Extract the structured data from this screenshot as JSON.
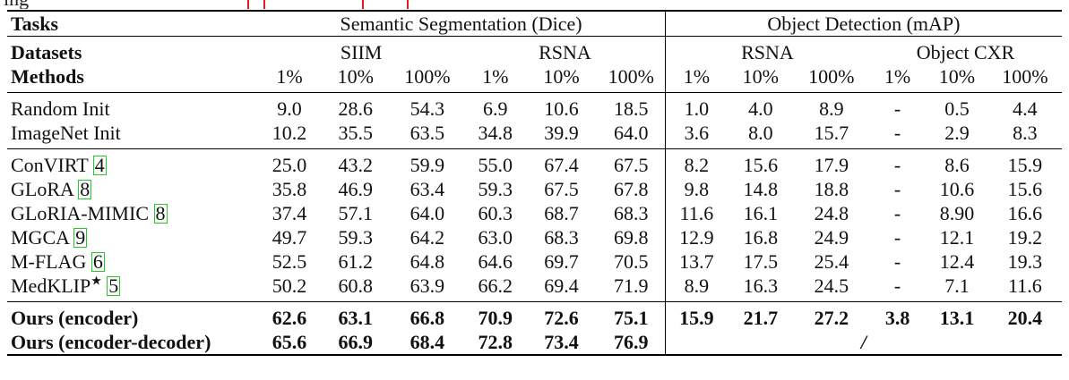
{
  "top_fragment": "ing",
  "header": {
    "tasks_label": "Tasks",
    "seg_task": "Semantic Segmentation (Dice)",
    "det_task": "Object Detection (mAP)",
    "datasets_label": "Datasets",
    "methods_label": "Methods",
    "seg_datasets": [
      "SIIM",
      "RSNA"
    ],
    "det_datasets": [
      "RSNA",
      "Object CXR"
    ],
    "fractions": [
      "1%",
      "10%",
      "100%",
      "1%",
      "10%",
      "100%",
      "1%",
      "10%",
      "100%",
      "1%",
      "10%",
      "100%"
    ]
  },
  "groups": [
    {
      "rows": [
        {
          "name": "Random Init",
          "ref": "",
          "values": [
            "9.0",
            "28.6",
            "54.3",
            "6.9",
            "10.6",
            "18.5",
            "1.0",
            "4.0",
            "8.9",
            "-",
            "0.5",
            "4.4"
          ]
        },
        {
          "name": "ImageNet Init",
          "ref": "",
          "values": [
            "10.2",
            "35.5",
            "63.5",
            "34.8",
            "39.9",
            "64.0",
            "3.6",
            "8.0",
            "15.7",
            "-",
            "2.9",
            "8.3"
          ]
        }
      ]
    },
    {
      "rows": [
        {
          "name": "ConVIRT",
          "ref": "4",
          "values": [
            "25.0",
            "43.2",
            "59.9",
            "55.0",
            "67.4",
            "67.5",
            "8.2",
            "15.6",
            "17.9",
            "-",
            "8.6",
            "15.9"
          ]
        },
        {
          "name": "GLoRA",
          "ref": "8",
          "values": [
            "35.8",
            "46.9",
            "63.4",
            "59.3",
            "67.5",
            "67.8",
            "9.8",
            "14.8",
            "18.8",
            "-",
            "10.6",
            "15.6"
          ]
        },
        {
          "name": "GLoRIA-MIMIC",
          "ref": "8",
          "values": [
            "37.4",
            "57.1",
            "64.0",
            "60.3",
            "68.7",
            "68.3",
            "11.6",
            "16.1",
            "24.8",
            "-",
            "8.90",
            "16.6"
          ]
        },
        {
          "name": "MGCA",
          "ref": "9",
          "values": [
            "49.7",
            "59.3",
            "64.2",
            "63.0",
            "68.3",
            "69.8",
            "12.9",
            "16.8",
            "24.9",
            "-",
            "12.1",
            "19.2"
          ]
        },
        {
          "name": "M-FLAG",
          "ref": "6",
          "values": [
            "52.5",
            "61.2",
            "64.8",
            "64.6",
            "69.7",
            "70.5",
            "13.7",
            "17.5",
            "25.4",
            "-",
            "12.4",
            "19.3"
          ]
        },
        {
          "name": "MedKLIP",
          "star": "★",
          "ref": "5",
          "values": [
            "50.2",
            "60.8",
            "63.9",
            "66.2",
            "69.4",
            "71.9",
            "8.9",
            "16.3",
            "24.5",
            "-",
            "7.1",
            "11.6"
          ]
        }
      ]
    }
  ],
  "ours": [
    {
      "name": "Ours (encoder)",
      "values": [
        "62.6",
        "63.1",
        "66.8",
        "70.9",
        "72.6",
        "75.1",
        "15.9",
        "21.7",
        "27.2",
        "3.8",
        "13.1",
        "20.4"
      ]
    },
    {
      "name": "Ours (encoder-decoder)",
      "values": [
        "65.6",
        "66.9",
        "68.4",
        "72.8",
        "73.4",
        "76.9"
      ],
      "det_placeholder": "/"
    }
  ]
}
